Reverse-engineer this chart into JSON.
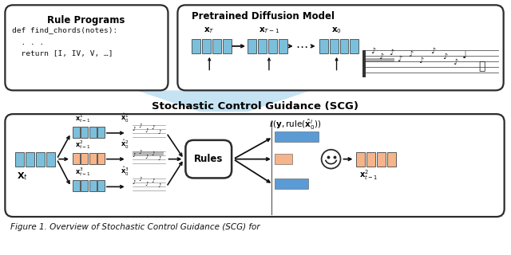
{
  "bg_color": "#ffffff",
  "figure_caption": "Figure 1. Overview of Stochastic Control Guidance (SCG) for",
  "title_scg": "Stochastic Control Guidance (SCG)",
  "top_left_title": "Rule Programs",
  "top_right_title": "Pretrained Diffusion Model",
  "code_lines": [
    "def find_chords(notes):",
    "  . . .",
    "  return [I, IV, V, …]"
  ],
  "blue": "#7bbfdb",
  "orange": "#f5b48a",
  "arrow_color": "#222222",
  "triangle_color": "#b8ddf0",
  "rules_box_color": "#ffffff",
  "loss_bar_blue": "#5b9bd5",
  "loss_bar_orange": "#f5b48a"
}
